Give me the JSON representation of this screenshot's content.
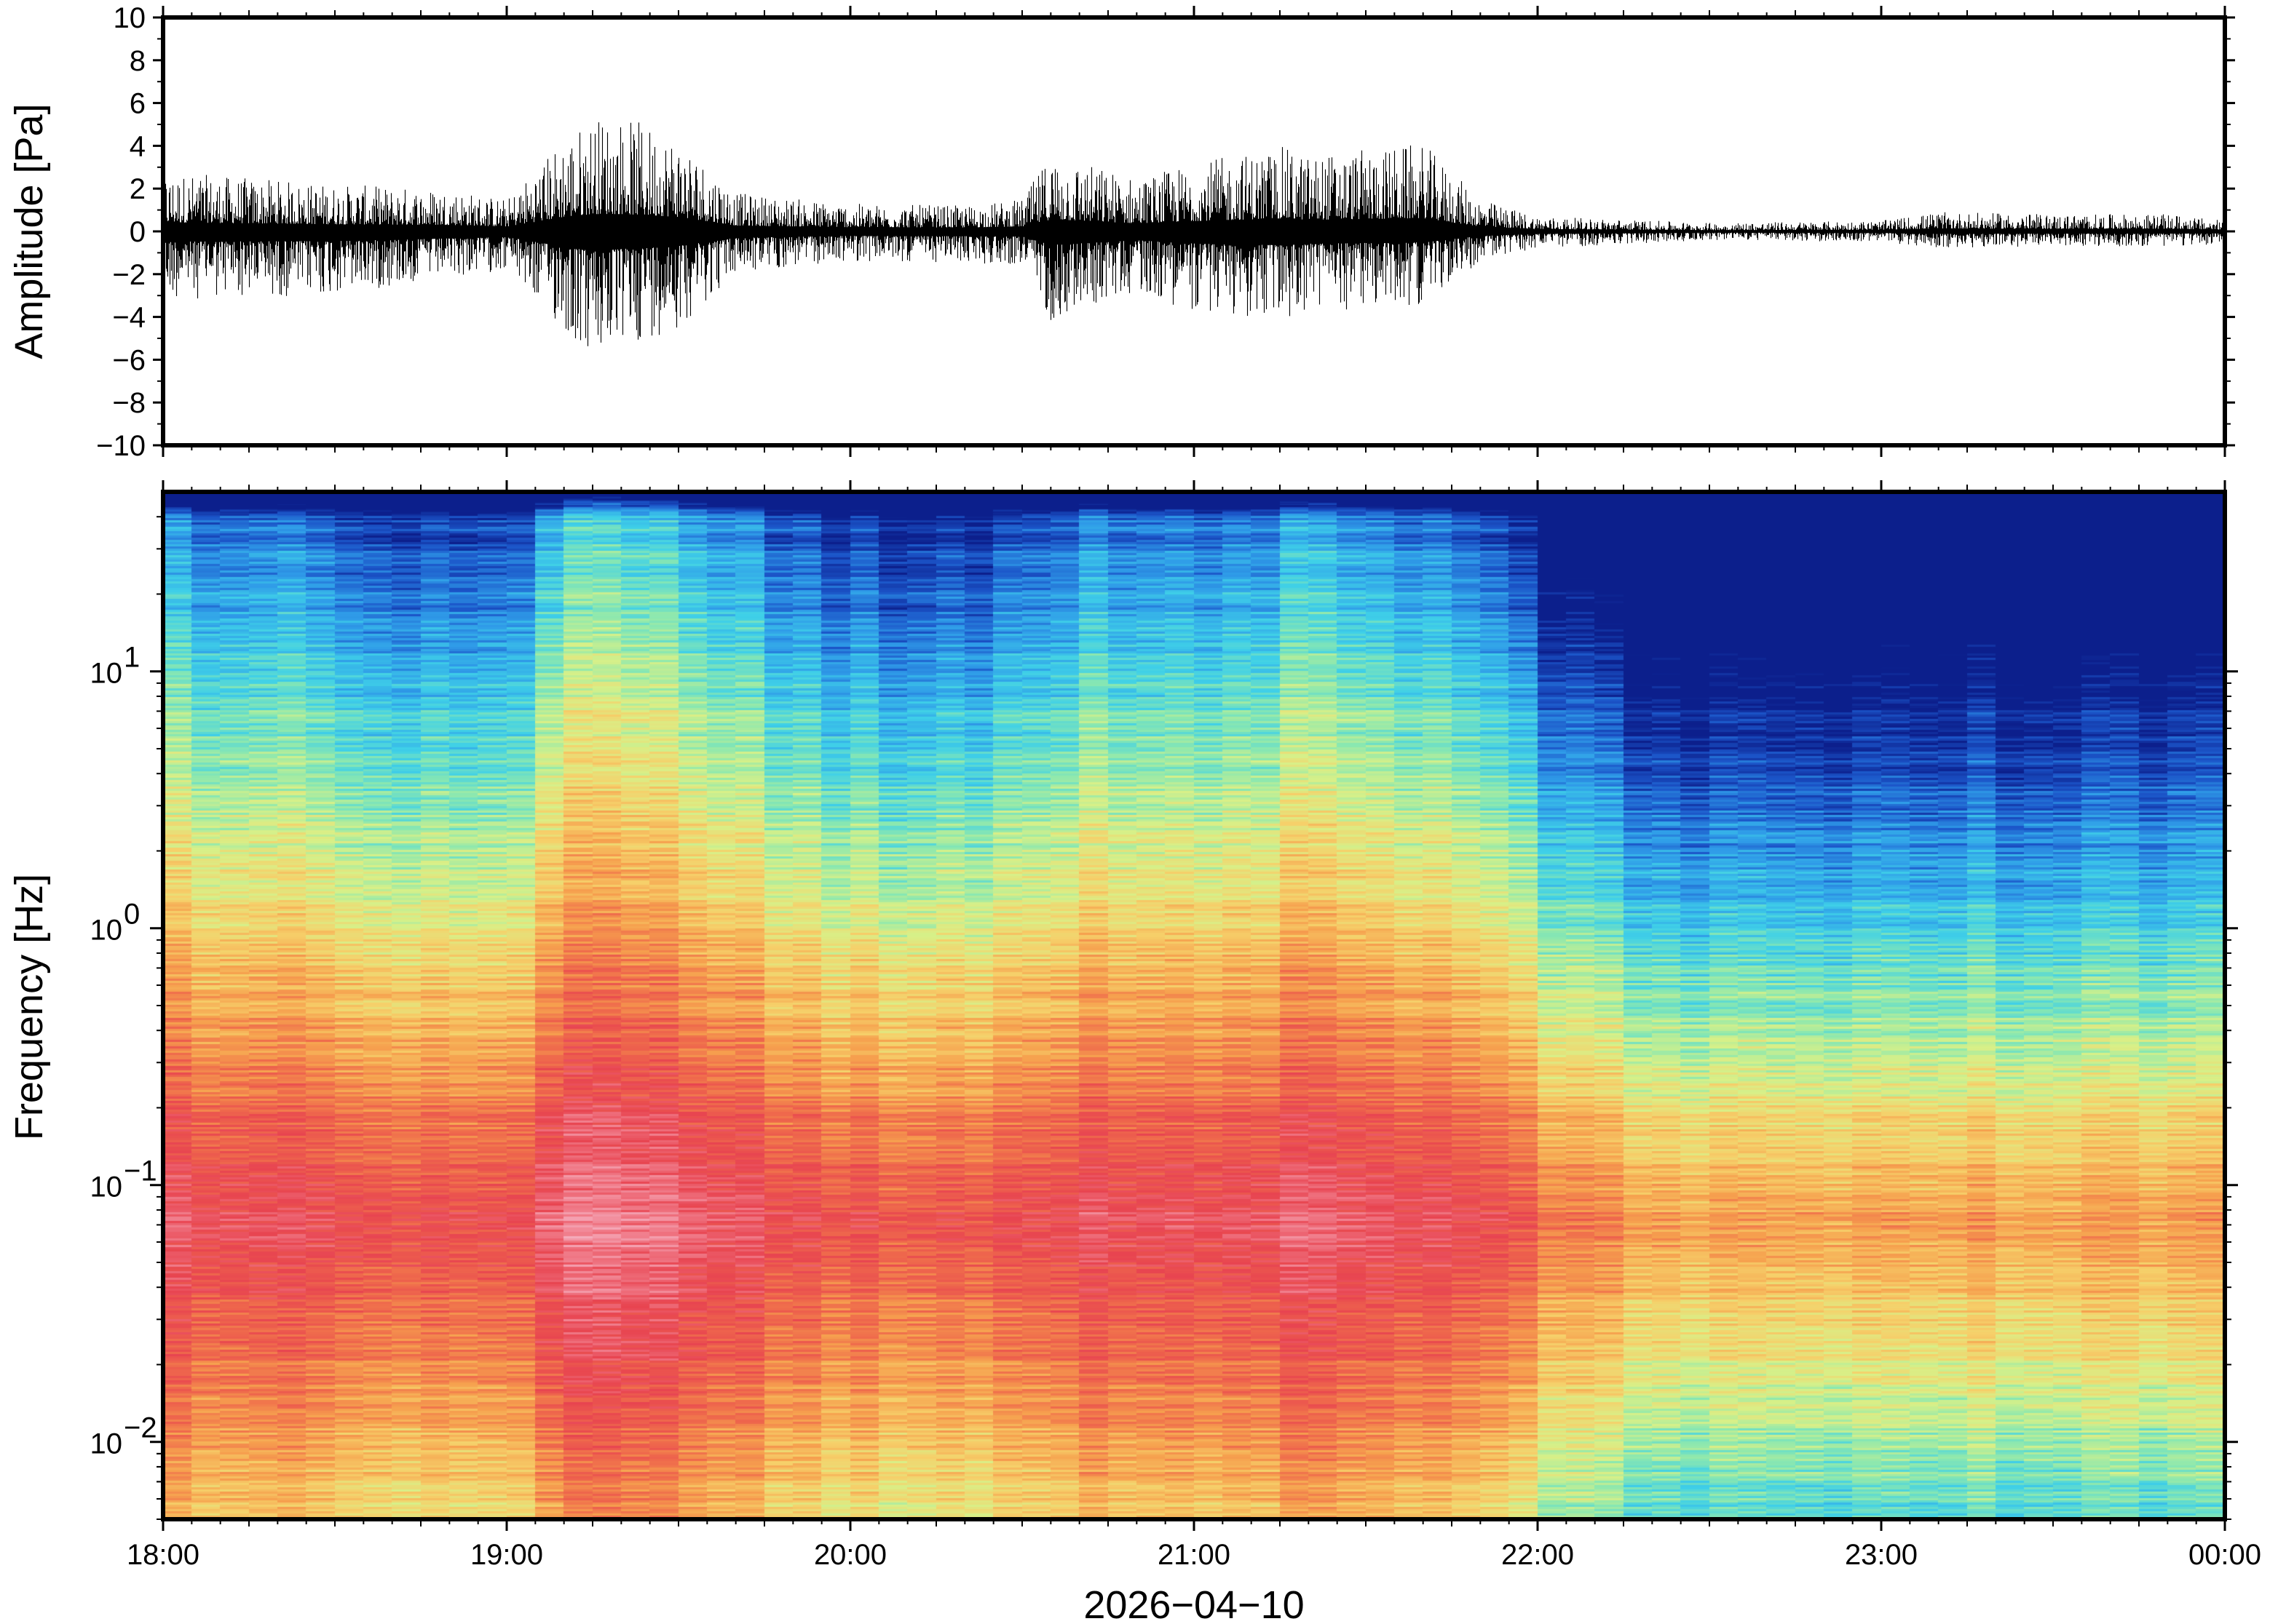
{
  "chart_data": [
    {
      "type": "line",
      "panel": "waveform",
      "ylabel": "Amplitude [Pa]",
      "ylim": [
        -10,
        10
      ],
      "yticks": [
        {
          "value": 10,
          "label": "10"
        },
        {
          "value": 8,
          "label": "8"
        },
        {
          "value": 6,
          "label": "6"
        },
        {
          "value": 4,
          "label": "4"
        },
        {
          "value": 2,
          "label": "2"
        },
        {
          "value": 0,
          "label": "0"
        },
        {
          "value": -2,
          "label": "−2"
        },
        {
          "value": -4,
          "label": "−4"
        },
        {
          "value": -6,
          "label": "−6"
        },
        {
          "value": -8,
          "label": "−8"
        },
        {
          "value": -10,
          "label": "−10"
        }
      ],
      "xlim": [
        "18:00",
        "00:00"
      ],
      "grid": false,
      "line_color": "#000000",
      "envelope": {
        "time": [
          "18:00",
          "18:30",
          "18:50",
          "19:00",
          "19:10",
          "19:15",
          "19:20",
          "19:30",
          "19:40",
          "20:00",
          "20:20",
          "20:30",
          "20:35",
          "20:50",
          "21:00",
          "21:15",
          "21:20",
          "21:40",
          "21:50",
          "22:00",
          "22:30",
          "23:00",
          "23:10",
          "23:30",
          "23:50",
          "00:00"
        ],
        "max": [
          2.8,
          2.2,
          2.0,
          1.5,
          4.5,
          5.4,
          5.4,
          4.5,
          1.8,
          1.3,
          1.2,
          1.5,
          3.7,
          2.5,
          3.2,
          4.0,
          3.6,
          4.1,
          1.5,
          0.7,
          0.4,
          0.5,
          0.9,
          0.8,
          0.8,
          0.5
        ],
        "min": [
          -3.2,
          -3.0,
          -2.2,
          -1.8,
          -4.8,
          -6.2,
          -5.5,
          -4.5,
          -2.0,
          -1.4,
          -1.5,
          -1.6,
          -4.2,
          -2.8,
          -3.8,
          -4.3,
          -3.8,
          -3.4,
          -1.4,
          -0.8,
          -0.4,
          -0.5,
          -0.8,
          -0.7,
          -0.7,
          -0.6
        ]
      }
    },
    {
      "type": "heatmap",
      "panel": "spectrogram",
      "ylabel": "Frequency [Hz]",
      "xlabel": "2026−04−10",
      "yscale": "log",
      "ylim": [
        0.005,
        50
      ],
      "yticks": [
        {
          "value": 0.01,
          "base": "10",
          "exp": "−2"
        },
        {
          "value": 0.1,
          "base": "10",
          "exp": "−1"
        },
        {
          "value": 1,
          "base": "10",
          "exp": "0"
        },
        {
          "value": 10,
          "base": "10",
          "exp": "1"
        }
      ],
      "xticks": [
        "18:00",
        "19:00",
        "20:00",
        "21:00",
        "22:00",
        "23:00",
        "00:00"
      ],
      "xlim": [
        "18:00",
        "00:00"
      ],
      "colormap": [
        "#0c1f8c",
        "#1b54c8",
        "#2f9be8",
        "#3fd0e8",
        "#8be8b0",
        "#d8f088",
        "#f6d06a",
        "#f6a04e",
        "#ef6a4c",
        "#e84450",
        "#f07a88",
        "#f6b0c0"
      ],
      "colormap_range_note": "",
      "column_activity": {
        "time": [
          "18:00",
          "18:30",
          "19:00",
          "19:15",
          "19:30",
          "20:00",
          "20:30",
          "20:40",
          "21:00",
          "21:20",
          "21:40",
          "21:55",
          "22:05",
          "22:30",
          "22:45",
          "23:00",
          "23:30",
          "00:00"
        ],
        "level": [
          0.72,
          0.62,
          0.6,
          0.95,
          0.78,
          0.55,
          0.55,
          0.68,
          0.66,
          0.74,
          0.64,
          0.6,
          0.32,
          0.2,
          0.15,
          0.24,
          0.2,
          0.22
        ]
      }
    }
  ]
}
